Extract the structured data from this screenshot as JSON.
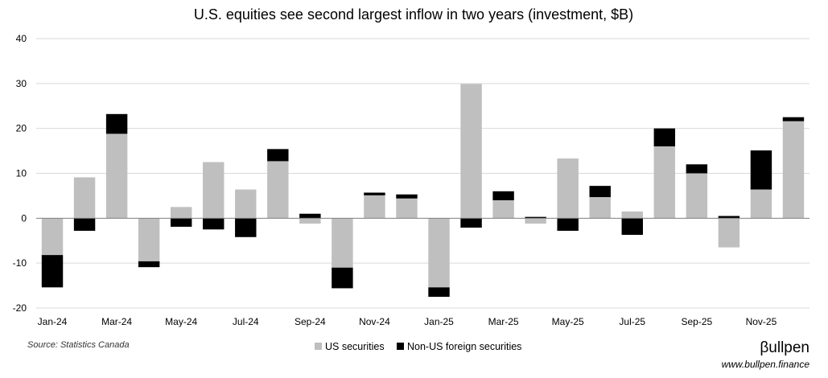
{
  "chart_data": {
    "type": "bar",
    "stacked": true,
    "title": "U.S. equities see second largest inflow in two years (investment, $B)",
    "xlabel": "",
    "ylabel": "",
    "ylim": [
      -20,
      40
    ],
    "yticks": [
      -20,
      -10,
      0,
      10,
      20,
      30,
      40
    ],
    "grid": true,
    "legend_position": "bottom",
    "categories": [
      "Jan-24",
      "Feb-24",
      "Mar-24",
      "Apr-24",
      "May-24",
      "Jun-24",
      "Jul-24",
      "Aug-24",
      "Sep-24",
      "Oct-24",
      "Nov-24",
      "Dec-24",
      "Jan-25",
      "Feb-25",
      "Mar-25",
      "Apr-25",
      "May-25",
      "Jun-25",
      "Jul-25",
      "Aug-25",
      "Sep-25",
      "Oct-25",
      "Nov-25",
      "Dec-25"
    ],
    "xtick_labels": [
      "Jan-24",
      "",
      "Mar-24",
      "",
      "May-24",
      "",
      "Jul-24",
      "",
      "Sep-24",
      "",
      "Nov-24",
      "",
      "Jan-25",
      "",
      "Mar-25",
      "",
      "May-25",
      "",
      "Jul-25",
      "",
      "Sep-25",
      "",
      "Nov-25",
      ""
    ],
    "series": [
      {
        "name": "US securities",
        "color": "#bfbfbf",
        "values": [
          -8.2,
          9.1,
          18.8,
          -9.6,
          2.5,
          12.5,
          6.4,
          12.7,
          -1.2,
          -11.0,
          5.1,
          4.4,
          -15.4,
          29.9,
          4.0,
          -1.2,
          13.3,
          4.7,
          1.5,
          16.0,
          10.0,
          -6.5,
          6.4,
          21.6
        ]
      },
      {
        "name": "Non-US foreign securities",
        "color": "#000000",
        "values": [
          -7.2,
          -2.8,
          4.4,
          -1.3,
          -1.9,
          -2.5,
          -4.2,
          2.7,
          1.0,
          -4.6,
          0.6,
          0.9,
          -2.1,
          -2.1,
          2.0,
          0.3,
          -2.8,
          2.5,
          -3.7,
          4.0,
          2.0,
          0.5,
          8.7,
          0.9
        ]
      }
    ]
  },
  "source_text": "Source: Statistics Canada",
  "brand": {
    "logo_text": "βullpen",
    "url": "www.bullpen.finance"
  }
}
